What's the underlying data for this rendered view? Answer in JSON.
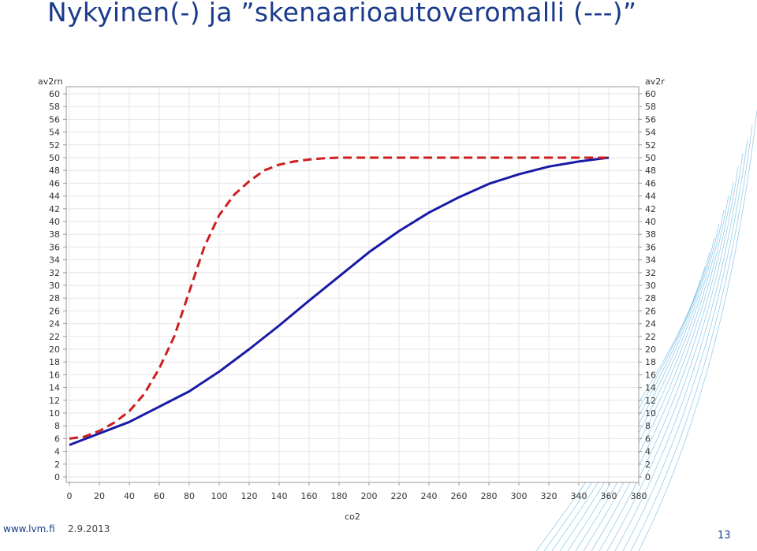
{
  "slide": {
    "title": "Nykyinen(-) ja ”skenaarioautoveromalli (---)”",
    "footer_url": "www.lvm.fi",
    "footer_date": "2.9.2013",
    "page_number": "13"
  },
  "colors": {
    "title": "#1a3b8c",
    "solid_series": "#1a1aa8",
    "dashed_series": "#cc1f1f",
    "grid": "#e6e6e6",
    "plot_border": "#999999",
    "decor_lines": "#3fa3d8"
  },
  "chart_data": {
    "type": "line",
    "title": "",
    "xlabel": "co2",
    "ylabel_left": "av2rn",
    "ylabel_right": "av2r",
    "xlim": [
      0,
      380
    ],
    "ylim": [
      0,
      60
    ],
    "x_ticks": [
      0,
      20,
      40,
      60,
      80,
      100,
      120,
      140,
      160,
      180,
      200,
      220,
      240,
      260,
      280,
      300,
      320,
      340,
      360,
      380
    ],
    "y_ticks": [
      0,
      2,
      4,
      6,
      8,
      10,
      12,
      14,
      16,
      18,
      20,
      22,
      24,
      26,
      28,
      30,
      32,
      34,
      36,
      38,
      40,
      42,
      44,
      46,
      48,
      50,
      52,
      54,
      56,
      58,
      60
    ],
    "grid": true,
    "series": [
      {
        "style": "solid",
        "x": [
          0,
          20,
          40,
          50,
          60,
          80,
          100,
          120,
          140,
          160,
          180,
          200,
          220,
          240,
          260,
          280,
          300,
          320,
          340,
          360
        ],
        "y": [
          5,
          6.8,
          8.6,
          9.8,
          11,
          13.4,
          16.5,
          20,
          23.7,
          27.6,
          31.4,
          35.2,
          38.5,
          41.4,
          43.8,
          45.9,
          47.4,
          48.6,
          49.4,
          50
        ]
      },
      {
        "style": "dashed",
        "x": [
          0,
          10,
          20,
          30,
          40,
          50,
          60,
          70,
          80,
          90,
          100,
          110,
          120,
          130,
          140,
          150,
          160,
          170,
          180,
          200,
          220,
          240,
          260,
          280,
          300,
          320,
          340,
          360
        ],
        "y": [
          6,
          6.3,
          7.2,
          8.5,
          10.3,
          13,
          17,
          22,
          29,
          36,
          41,
          44.2,
          46.3,
          48,
          48.9,
          49.4,
          49.7,
          49.9,
          50,
          50,
          50,
          50,
          50,
          50,
          50,
          50,
          50,
          50
        ]
      }
    ]
  }
}
